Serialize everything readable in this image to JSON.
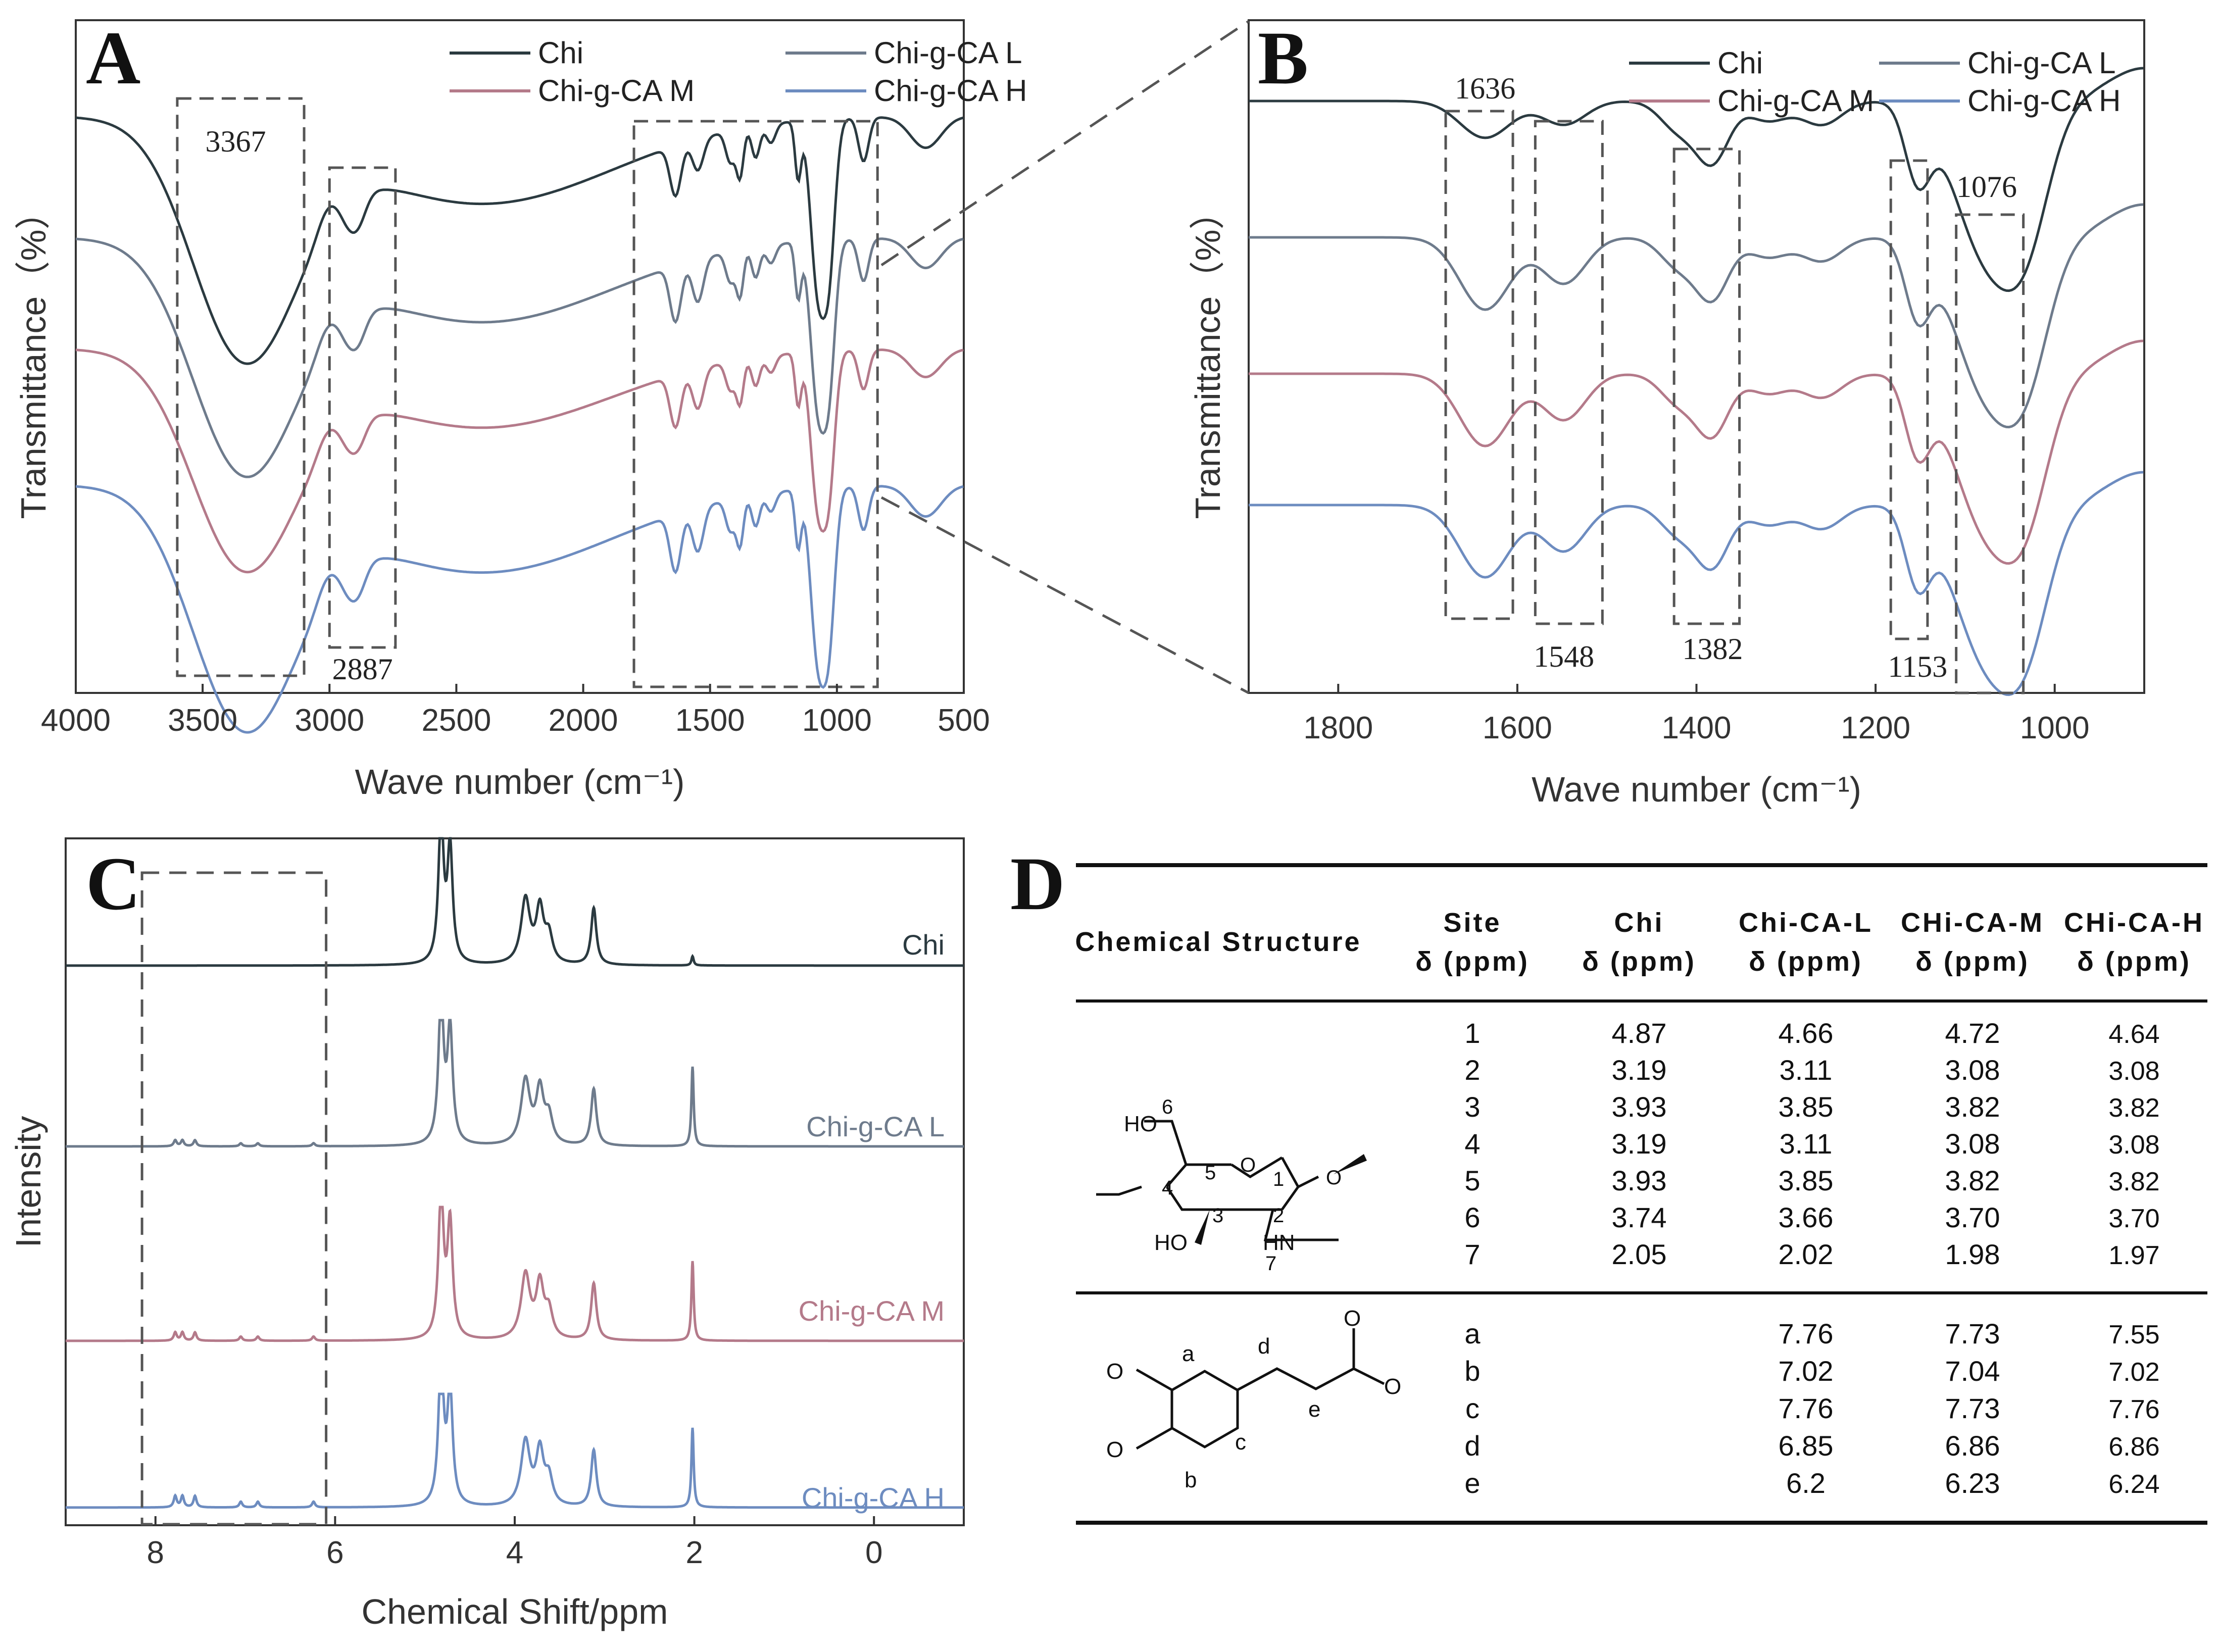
{
  "colors": {
    "Chi": "#2b3a40",
    "Chi-g-CA L": "#6e7b8c",
    "Chi-g-CA M": "#b47a8a",
    "Chi-g-CA H": "#6d8cc0",
    "box": "#555555",
    "axis": "#333333"
  },
  "chart_data": [
    {
      "panel": "A",
      "type": "line",
      "xlabel": "Wave number (cm⁻¹)",
      "ylabel": "Transmittance（%）",
      "xlim": [
        4000,
        500
      ],
      "x_ticks": [
        "4000",
        "3500",
        "3000",
        "2500",
        "2000",
        "1500",
        "1000",
        "500"
      ],
      "legend": [
        "Chi",
        "Chi-g-CA L",
        "Chi-g-CA M",
        "Chi-g-CA H"
      ],
      "legend_position": "top-right",
      "annotations": [
        "3367",
        "2887"
      ]
    },
    {
      "panel": "B",
      "type": "line",
      "xlabel": "Wave number (cm⁻¹)",
      "ylabel": "Transmittance（%）",
      "xlim": [
        1900,
        900
      ],
      "x_ticks": [
        "1800",
        "1600",
        "1400",
        "1200",
        "1000"
      ],
      "legend": [
        "Chi",
        "Chi-g-CA L",
        "Chi-g-CA M",
        "Chi-g-CA H"
      ],
      "legend_position": "top-right",
      "annotations": [
        "1636",
        "1548",
        "1382",
        "1153",
        "1076"
      ]
    },
    {
      "panel": "C",
      "type": "line",
      "xlabel": "Chemical Shift/ppm",
      "ylabel": "Intensity",
      "xlim": [
        9,
        -1
      ],
      "x_ticks": [
        "8",
        "6",
        "4",
        "2",
        "0"
      ],
      "series_labels": [
        "Chi",
        "Chi-g-CA L",
        "Chi-g-CA M",
        "Chi-g-CA H"
      ]
    },
    {
      "panel": "D",
      "type": "table",
      "headers": [
        [
          "Chemical Structure"
        ],
        [
          "Site",
          "δ (ppm)"
        ],
        [
          "Chi",
          "δ (ppm)"
        ],
        [
          "Chi-CA-L",
          "δ (ppm)"
        ],
        [
          "CHi-CA-M",
          "δ (ppm)"
        ],
        [
          "CHi-CA-H",
          "δ (ppm)"
        ]
      ],
      "group1": [
        [
          "1",
          "4.87",
          "4.66",
          "4.72",
          "4.64"
        ],
        [
          "2",
          "3.19",
          "3.11",
          "3.08",
          "3.08"
        ],
        [
          "3",
          "3.93",
          "3.85",
          "3.82",
          "3.82"
        ],
        [
          "4",
          "3.19",
          "3.11",
          "3.08",
          "3.08"
        ],
        [
          "5",
          "3.93",
          "3.85",
          "3.82",
          "3.82"
        ],
        [
          "6",
          "3.74",
          "3.66",
          "3.70",
          "3.70"
        ],
        [
          "7",
          "2.05",
          "2.02",
          "1.98",
          "1.97"
        ]
      ],
      "group2": [
        [
          "a",
          "",
          "7.76",
          "7.73",
          "7.55"
        ],
        [
          "b",
          "",
          "7.02",
          "7.04",
          "7.02"
        ],
        [
          "c",
          "",
          "7.76",
          "7.73",
          "7.76"
        ],
        [
          "d",
          "",
          "6.85",
          "6.86",
          "6.86"
        ],
        [
          "e",
          "",
          "6.2",
          "6.23",
          "6.24"
        ]
      ],
      "structure1_labels": [
        "HO",
        "6",
        "5",
        "O",
        "1",
        "O",
        "4",
        "3",
        "2",
        "HO",
        "HN",
        "7"
      ],
      "structure2_labels": [
        "O",
        "O",
        "a",
        "b",
        "c",
        "d",
        "e",
        "O",
        "O"
      ]
    }
  ],
  "panel_letters": [
    "A",
    "B",
    "C",
    "D"
  ]
}
